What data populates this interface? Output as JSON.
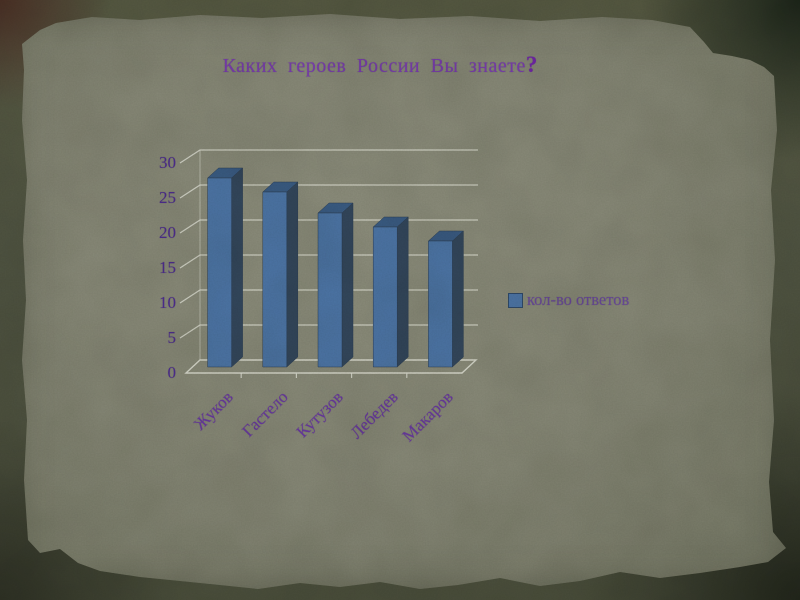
{
  "slide": {
    "title_main": "Каких героев России Вы знаете",
    "title_qmark": "?"
  },
  "chart_data": {
    "type": "bar",
    "style": "3d-column",
    "title": "Каких героев России Вы знаете?",
    "categories": [
      "Жуков",
      "Гастело",
      "Кутузов",
      "Лебедев",
      "Макаров"
    ],
    "series": [
      {
        "name": "кол-во ответов",
        "values": [
          27,
          25,
          22,
          20,
          18
        ]
      }
    ],
    "values": [
      27,
      25,
      22,
      20,
      18
    ],
    "legend": "кол-во ответов",
    "legend_position": "right",
    "xlabel": "",
    "ylabel": "",
    "ylim": [
      0,
      30
    ],
    "yticks": [
      0,
      5,
      10,
      15,
      20,
      25,
      30
    ],
    "grid": true,
    "colors": {
      "bar_front": "#4d76a9",
      "bar_top": "#3a5c85",
      "bar_side": "#33475d",
      "bar_stroke": "#2c3e55",
      "gridline": "#dcddd3",
      "axis_text": "#4e2d92",
      "category_text": "#6a39a4",
      "legend_text": "#6b4a9e",
      "title_text": "#7b3db3",
      "paper": "#8a8b7b",
      "background": "#51543f"
    }
  }
}
